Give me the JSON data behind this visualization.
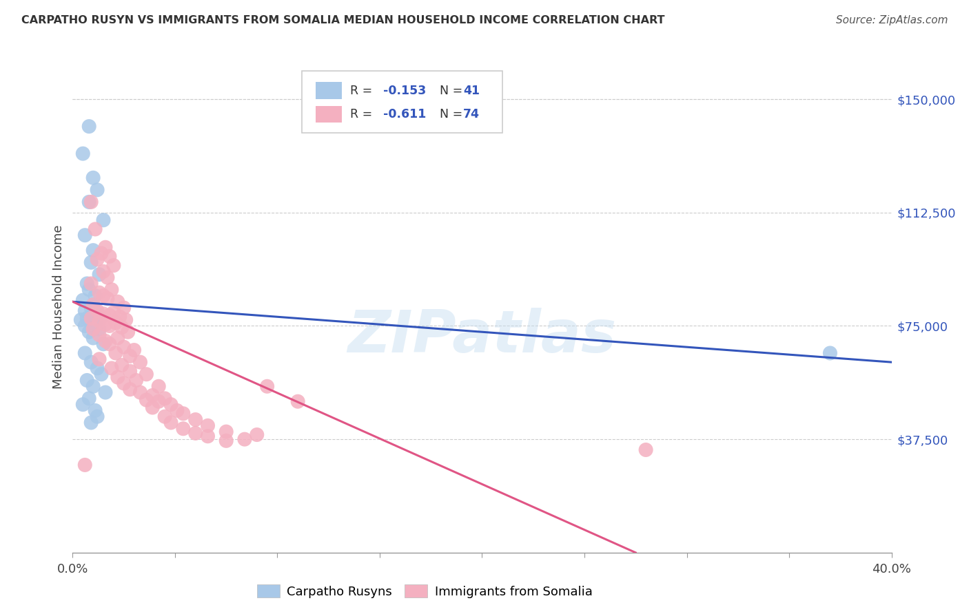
{
  "title": "CARPATHO RUSYN VS IMMIGRANTS FROM SOMALIA MEDIAN HOUSEHOLD INCOME CORRELATION CHART",
  "source": "Source: ZipAtlas.com",
  "ylabel": "Median Household Income",
  "ytick_labels": [
    "$37,500",
    "$75,000",
    "$112,500",
    "$150,000"
  ],
  "ytick_values": [
    37500,
    75000,
    112500,
    150000
  ],
  "ylim": [
    0,
    162500
  ],
  "xlim": [
    0.0,
    0.4
  ],
  "watermark": "ZIPatlas",
  "legend_blue_r": "-0.153",
  "legend_blue_n": "41",
  "legend_pink_r": "-0.611",
  "legend_pink_n": "74",
  "blue_color": "#a8c8e8",
  "pink_color": "#f4b0c0",
  "blue_line_color": "#3355bb",
  "pink_line_color": "#e05585",
  "blue_line": [
    [
      0.0,
      83000
    ],
    [
      0.4,
      63000
    ]
  ],
  "pink_line": [
    [
      0.0,
      83000
    ],
    [
      0.275,
      0
    ]
  ],
  "blue_scatter_x": [
    0.008,
    0.005,
    0.01,
    0.012,
    0.008,
    0.015,
    0.006,
    0.01,
    0.009,
    0.013,
    0.007,
    0.008,
    0.011,
    0.005,
    0.01,
    0.009,
    0.006,
    0.012,
    0.014,
    0.007,
    0.004,
    0.009,
    0.011,
    0.006,
    0.013,
    0.008,
    0.01,
    0.015,
    0.006,
    0.009,
    0.012,
    0.014,
    0.007,
    0.01,
    0.016,
    0.008,
    0.005,
    0.011,
    0.37,
    0.012,
    0.009
  ],
  "blue_scatter_y": [
    141000,
    132000,
    124000,
    120000,
    116000,
    110000,
    105000,
    100000,
    96000,
    92000,
    89000,
    87000,
    85000,
    83500,
    82000,
    81000,
    80000,
    79000,
    78000,
    77500,
    77000,
    76000,
    75500,
    75000,
    74000,
    73000,
    71000,
    69000,
    66000,
    63000,
    61000,
    59000,
    57000,
    55000,
    53000,
    51000,
    49000,
    47000,
    66000,
    45000,
    43000
  ],
  "pink_scatter_x": [
    0.009,
    0.011,
    0.016,
    0.014,
    0.018,
    0.012,
    0.02,
    0.015,
    0.017,
    0.009,
    0.019,
    0.013,
    0.015,
    0.017,
    0.022,
    0.01,
    0.025,
    0.012,
    0.02,
    0.015,
    0.018,
    0.023,
    0.009,
    0.026,
    0.013,
    0.021,
    0.016,
    0.018,
    0.024,
    0.01,
    0.027,
    0.013,
    0.022,
    0.016,
    0.018,
    0.025,
    0.03,
    0.021,
    0.028,
    0.013,
    0.033,
    0.024,
    0.019,
    0.028,
    0.036,
    0.022,
    0.031,
    0.025,
    0.042,
    0.028,
    0.033,
    0.039,
    0.045,
    0.036,
    0.042,
    0.048,
    0.039,
    0.051,
    0.054,
    0.045,
    0.06,
    0.048,
    0.066,
    0.054,
    0.075,
    0.06,
    0.09,
    0.066,
    0.084,
    0.075,
    0.006,
    0.095,
    0.11,
    0.28
  ],
  "pink_scatter_y": [
    116000,
    107000,
    101000,
    99000,
    98000,
    97000,
    95000,
    93000,
    91000,
    89000,
    87000,
    86000,
    85000,
    84000,
    83000,
    82000,
    81000,
    80000,
    79500,
    79000,
    78500,
    78000,
    77500,
    77000,
    76500,
    76000,
    75500,
    75000,
    74500,
    74000,
    73000,
    72000,
    71000,
    70000,
    69000,
    68000,
    67000,
    66000,
    65000,
    64000,
    63000,
    62000,
    61000,
    60000,
    59000,
    58000,
    57000,
    56000,
    55000,
    54000,
    53000,
    52000,
    51000,
    50500,
    50000,
    49000,
    48000,
    47000,
    46000,
    45000,
    44000,
    43000,
    42000,
    41000,
    40000,
    39500,
    39000,
    38500,
    37500,
    37000,
    29000,
    55000,
    50000,
    34000
  ],
  "background_color": "#ffffff",
  "grid_color": "#cccccc"
}
